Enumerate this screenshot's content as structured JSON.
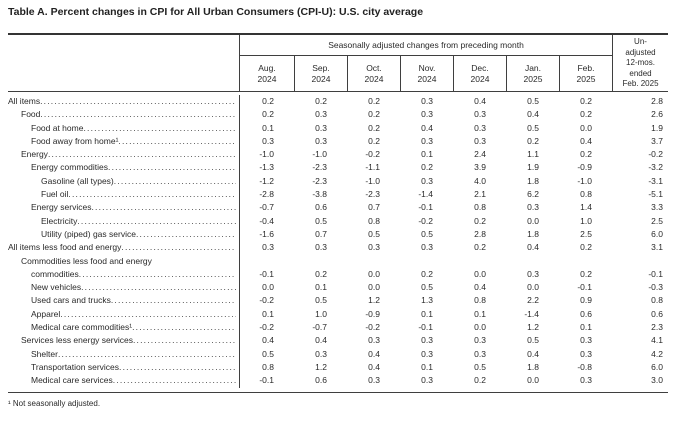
{
  "title": "Table A. Percent changes in CPI for All Urban Consumers (CPI-U): U.S. city average",
  "table": {
    "group_header": "Seasonally adjusted changes from preceding month",
    "unadjusted_header": "Un-\nadjusted\n12-mos.\nended\nFeb. 2025",
    "months": [
      "Aug.\n2024",
      "Sep.\n2024",
      "Oct.\n2024",
      "Nov.\n2024",
      "Dec.\n2024",
      "Jan.\n2025",
      "Feb.\n2025"
    ],
    "rows": [
      {
        "label": "All items",
        "indent": 0,
        "values": [
          "0.2",
          "0.2",
          "0.2",
          "0.3",
          "0.4",
          "0.5",
          "0.2",
          "2.8"
        ]
      },
      {
        "label": "Food",
        "indent": 1,
        "values": [
          "0.2",
          "0.3",
          "0.2",
          "0.3",
          "0.3",
          "0.4",
          "0.2",
          "2.6"
        ]
      },
      {
        "label": "Food at home",
        "indent": 2,
        "values": [
          "0.1",
          "0.3",
          "0.2",
          "0.4",
          "0.3",
          "0.5",
          "0.0",
          "1.9"
        ]
      },
      {
        "label": "Food away from home¹",
        "indent": 2,
        "values": [
          "0.3",
          "0.3",
          "0.2",
          "0.3",
          "0.3",
          "0.2",
          "0.4",
          "3.7"
        ]
      },
      {
        "label": "Energy",
        "indent": 1,
        "values": [
          "-1.0",
          "-1.0",
          "-0.2",
          "0.1",
          "2.4",
          "1.1",
          "0.2",
          "-0.2"
        ]
      },
      {
        "label": "Energy commodities",
        "indent": 2,
        "values": [
          "-1.3",
          "-2.3",
          "-1.1",
          "0.2",
          "3.9",
          "1.9",
          "-0.9",
          "-3.2"
        ]
      },
      {
        "label": "Gasoline (all types)",
        "indent": 3,
        "values": [
          "-1.2",
          "-2.3",
          "-1.0",
          "0.3",
          "4.0",
          "1.8",
          "-1.0",
          "-3.1"
        ]
      },
      {
        "label": "Fuel oil",
        "indent": 3,
        "values": [
          "-2.8",
          "-3.8",
          "-2.3",
          "-1.4",
          "2.1",
          "6.2",
          "0.8",
          "-5.1"
        ]
      },
      {
        "label": "Energy services",
        "indent": 2,
        "values": [
          "-0.7",
          "0.6",
          "0.7",
          "-0.1",
          "0.8",
          "0.3",
          "1.4",
          "3.3"
        ]
      },
      {
        "label": "Electricity",
        "indent": 3,
        "values": [
          "-0.4",
          "0.5",
          "0.8",
          "-0.2",
          "0.2",
          "0.0",
          "1.0",
          "2.5"
        ]
      },
      {
        "label": "Utility (piped) gas service",
        "indent": 3,
        "values": [
          "-1.6",
          "0.7",
          "0.5",
          "0.5",
          "2.8",
          "1.8",
          "2.5",
          "6.0"
        ]
      },
      {
        "label": "All items less food and energy",
        "indent": 0,
        "values": [
          "0.3",
          "0.3",
          "0.3",
          "0.3",
          "0.2",
          "0.4",
          "0.2",
          "3.1"
        ]
      },
      {
        "label": "Commodities less food and energy",
        "label2": "commodities",
        "indent": 1,
        "values": [
          "-0.1",
          "0.2",
          "0.0",
          "0.2",
          "0.0",
          "0.3",
          "0.2",
          "-0.1"
        ]
      },
      {
        "label": "New vehicles",
        "indent": 2,
        "values": [
          "0.0",
          "0.1",
          "0.0",
          "0.5",
          "0.4",
          "0.0",
          "-0.1",
          "-0.3"
        ]
      },
      {
        "label": "Used cars and trucks",
        "indent": 2,
        "values": [
          "-0.2",
          "0.5",
          "1.2",
          "1.3",
          "0.8",
          "2.2",
          "0.9",
          "0.8"
        ]
      },
      {
        "label": "Apparel",
        "indent": 2,
        "values": [
          "0.1",
          "1.0",
          "-0.9",
          "0.1",
          "0.1",
          "-1.4",
          "0.6",
          "0.6"
        ]
      },
      {
        "label": "Medical care commodities¹",
        "indent": 2,
        "values": [
          "-0.2",
          "-0.7",
          "-0.2",
          "-0.1",
          "0.0",
          "1.2",
          "0.1",
          "2.3"
        ]
      },
      {
        "label": "Services less energy services",
        "indent": 1,
        "values": [
          "0.4",
          "0.4",
          "0.3",
          "0.3",
          "0.3",
          "0.5",
          "0.3",
          "4.1"
        ]
      },
      {
        "label": "Shelter",
        "indent": 2,
        "values": [
          "0.5",
          "0.3",
          "0.4",
          "0.3",
          "0.3",
          "0.4",
          "0.3",
          "4.2"
        ]
      },
      {
        "label": "Transportation services",
        "indent": 2,
        "values": [
          "0.8",
          "1.2",
          "0.4",
          "0.1",
          "0.5",
          "1.8",
          "-0.8",
          "6.0"
        ]
      },
      {
        "label": "Medical care services",
        "indent": 2,
        "values": [
          "-0.1",
          "0.6",
          "0.3",
          "0.3",
          "0.2",
          "0.0",
          "0.3",
          "3.0"
        ]
      }
    ]
  },
  "footnote": "¹ Not seasonally adjusted."
}
